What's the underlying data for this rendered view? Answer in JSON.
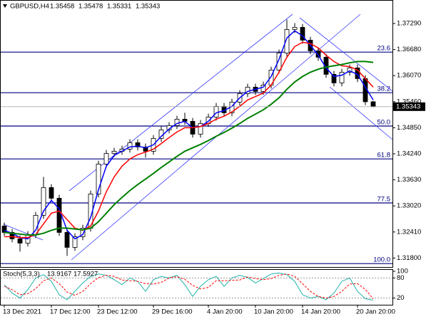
{
  "chart_data": {
    "type": "candlestick",
    "symbol": "GBPUSD,H4",
    "header_values": [
      1.35458,
      1.35478,
      1.35331,
      1.35343
    ],
    "categories": [
      "13 Dec 2021",
      null,
      null,
      null,
      null,
      null,
      "17 Dec 12:00",
      null,
      null,
      null,
      null,
      null,
      "23 Dec 12:00",
      null,
      null,
      null,
      null,
      null,
      null,
      "29 Dec 16:00",
      null,
      null,
      null,
      null,
      null,
      null,
      "4 Jan 20:00",
      null,
      null,
      null,
      null,
      null,
      "10 Jan 20:00",
      null,
      null,
      null,
      null,
      null,
      "14 Jan 20:00",
      null,
      null,
      null,
      null,
      null,
      null,
      "20 Jan 20:00",
      null,
      null
    ],
    "open": [
      1.3255,
      1.324,
      1.3225,
      1.3215,
      1.3235,
      1.328,
      1.3345,
      1.332,
      1.324,
      1.3205,
      1.323,
      1.325,
      1.333,
      1.34,
      1.3425,
      1.343,
      1.3435,
      1.345,
      1.344,
      1.343,
      1.346,
      1.348,
      1.349,
      1.3505,
      1.35,
      1.347,
      1.3495,
      1.351,
      1.3535,
      1.352,
      1.3545,
      1.3565,
      1.358,
      1.357,
      1.3585,
      1.362,
      1.366,
      1.3715,
      1.372,
      1.369,
      1.3665,
      1.365,
      1.361,
      1.359,
      1.3615,
      1.3625,
      1.36,
      1.35458
    ],
    "high": [
      1.3263,
      1.3248,
      1.3233,
      1.3243,
      1.3288,
      1.337,
      1.3353,
      1.3328,
      1.3248,
      1.3238,
      1.3258,
      1.3338,
      1.3408,
      1.3433,
      1.3438,
      1.3443,
      1.3458,
      1.3458,
      1.3448,
      1.3468,
      1.3488,
      1.3498,
      1.3513,
      1.352,
      1.3508,
      1.3503,
      1.3518,
      1.3543,
      1.3543,
      1.3553,
      1.3573,
      1.3588,
      1.3588,
      1.3593,
      1.3628,
      1.3668,
      1.3738,
      1.373,
      1.3728,
      1.3698,
      1.3673,
      1.3658,
      1.3618,
      1.3623,
      1.3633,
      1.3633,
      1.3608,
      1.35478
    ],
    "low": [
      1.3232,
      1.3217,
      1.3195,
      1.3207,
      1.3227,
      1.3272,
      1.3312,
      1.3232,
      1.3185,
      1.3197,
      1.3222,
      1.3242,
      1.3322,
      1.3392,
      1.3417,
      1.3422,
      1.3427,
      1.3432,
      1.3415,
      1.3422,
      1.3452,
      1.3472,
      1.3482,
      1.3492,
      1.3462,
      1.3462,
      1.3487,
      1.3502,
      1.3512,
      1.3512,
      1.3537,
      1.3557,
      1.3562,
      1.3562,
      1.3577,
      1.3612,
      1.3652,
      1.3707,
      1.3682,
      1.3657,
      1.3642,
      1.3602,
      1.3582,
      1.3582,
      1.3607,
      1.3592,
      1.3538,
      1.35331
    ],
    "close": [
      1.324,
      1.3225,
      1.3215,
      1.3235,
      1.328,
      1.3345,
      1.332,
      1.324,
      1.3205,
      1.323,
      1.325,
      1.333,
      1.34,
      1.3425,
      1.343,
      1.3435,
      1.345,
      1.344,
      1.343,
      1.346,
      1.348,
      1.349,
      1.3505,
      1.35,
      1.347,
      1.3495,
      1.351,
      1.3535,
      1.352,
      1.3545,
      1.3565,
      1.358,
      1.357,
      1.3585,
      1.362,
      1.366,
      1.3715,
      1.372,
      1.369,
      1.3665,
      1.365,
      1.361,
      1.359,
      1.3615,
      1.3625,
      1.36,
      1.35458,
      1.35343
    ],
    "moving_averages": [
      {
        "color": "#0000ff",
        "width": 1.5,
        "values": [
          1.3245,
          1.3238,
          1.3228,
          1.3225,
          1.3245,
          1.329,
          1.3315,
          1.3295,
          1.3245,
          1.3225,
          1.3235,
          1.3275,
          1.334,
          1.3395,
          1.342,
          1.343,
          1.344,
          1.3442,
          1.3438,
          1.3445,
          1.3465,
          1.3482,
          1.3495,
          1.35,
          1.3485,
          1.3488,
          1.35,
          1.352,
          1.3525,
          1.3535,
          1.3555,
          1.357,
          1.3575,
          1.358,
          1.3605,
          1.3645,
          1.3695,
          1.3712,
          1.37,
          1.3678,
          1.3655,
          1.3625,
          1.3605,
          1.3608,
          1.3618,
          1.361,
          1.358,
          1.355
        ]
      },
      {
        "color": "#ff0000",
        "width": 1.5,
        "values": [
          1.323,
          1.323,
          1.3228,
          1.3228,
          1.3235,
          1.326,
          1.3285,
          1.329,
          1.327,
          1.325,
          1.3245,
          1.3255,
          1.329,
          1.3335,
          1.337,
          1.3395,
          1.3412,
          1.3422,
          1.3428,
          1.3435,
          1.3448,
          1.3462,
          1.3475,
          1.3485,
          1.3485,
          1.3488,
          1.3495,
          1.3505,
          1.3512,
          1.3522,
          1.3535,
          1.355,
          1.3558,
          1.3566,
          1.3585,
          1.3615,
          1.365,
          1.3675,
          1.3685,
          1.3682,
          1.3672,
          1.3655,
          1.364,
          1.363,
          1.3628,
          1.362,
          1.36,
          1.358
        ]
      },
      {
        "color": "#008000",
        "width": 2,
        "values": [
          1.324,
          1.3238,
          1.3236,
          1.3234,
          1.3234,
          1.3238,
          1.3245,
          1.325,
          1.325,
          1.3248,
          1.3246,
          1.325,
          1.3265,
          1.3285,
          1.3305,
          1.3322,
          1.3338,
          1.3352,
          1.3365,
          1.3378,
          1.3392,
          1.3405,
          1.3418,
          1.343,
          1.3438,
          1.3446,
          1.3455,
          1.3465,
          1.3474,
          1.3484,
          1.3495,
          1.3507,
          1.3517,
          1.3527,
          1.354,
          1.3555,
          1.3575,
          1.3592,
          1.3605,
          1.3615,
          1.3622,
          1.3627,
          1.363,
          1.3633,
          1.3637,
          1.364,
          1.364,
          1.3638
        ]
      }
    ],
    "ylim": [
      1.3159,
      1.3784
    ],
    "yticks": [
      {
        "value": 1.3729,
        "label": "1.37290"
      },
      {
        "value": 1.3668,
        "label": "1.36680"
      },
      {
        "value": 1.3607,
        "label": "1.36070"
      },
      {
        "value": 1.3546,
        "label": "1.35460"
      },
      {
        "value": 1.3485,
        "label": "1.34850"
      },
      {
        "value": 1.3424,
        "label": "1.34240"
      },
      {
        "value": 1.3363,
        "label": "1.33630"
      },
      {
        "value": 1.3302,
        "label": "1.33020"
      },
      {
        "value": 1.3241,
        "label": "1.32410"
      },
      {
        "value": 1.318,
        "label": "1.31800"
      }
    ],
    "last_price": {
      "value": 1.35343,
      "label": "1.35343"
    },
    "fibo_levels": [
      {
        "label": "23.6",
        "price": 1.3662
      },
      {
        "label": "38.2",
        "price": 1.3567
      },
      {
        "label": "50.0",
        "price": 1.3489
      },
      {
        "label": "61.8",
        "price": 1.3412
      },
      {
        "label": "77.5",
        "price": 1.3309
      },
      {
        "label": "100.0",
        "price": 1.3167
      }
    ],
    "fibo_color": "#000080",
    "stochastic": {
      "title": "Stoch(5,3,3)",
      "ylim": [
        0,
        100
      ],
      "yticks": [
        100,
        80,
        20
      ],
      "main": {
        "color": "#20b2aa",
        "values": [
          60,
          35,
          20,
          45,
          80,
          90,
          70,
          30,
          15,
          40,
          65,
          85,
          92,
          88,
          75,
          60,
          80,
          70,
          40,
          75,
          85,
          80,
          88,
          60,
          25,
          55,
          75,
          85,
          55,
          80,
          88,
          82,
          65,
          78,
          92,
          95,
          90,
          70,
          30,
          20,
          25,
          15,
          35,
          70,
          80,
          40,
          18,
          13.9167
        ]
      },
      "signal": {
        "color": "#ff0000",
        "values": [
          55,
          45,
          30,
          33,
          48,
          72,
          80,
          63,
          38,
          28,
          40,
          63,
          81,
          88,
          85,
          74,
          72,
          70,
          63,
          62,
          67,
          80,
          84,
          76,
          58,
          47,
          52,
          72,
          72,
          73,
          74,
          83,
          78,
          75,
          78,
          88,
          92,
          85,
          63,
          40,
          25,
          20,
          25,
          40,
          62,
          63,
          46,
          17.5927
        ]
      }
    }
  }
}
